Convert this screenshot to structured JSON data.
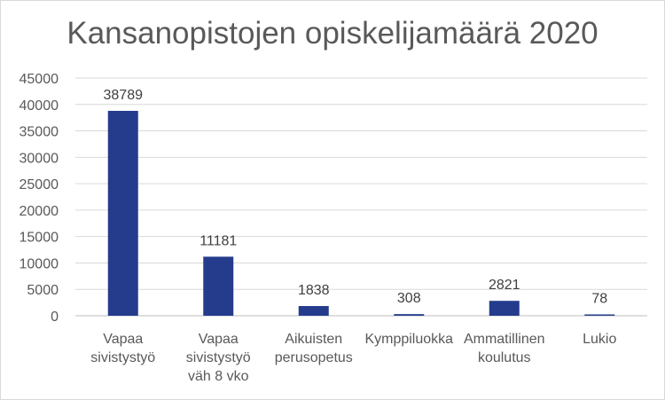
{
  "chart_data": {
    "type": "bar",
    "title": "Kansanopistojen opiskelijamäärä 2020",
    "xlabel": "",
    "ylabel": "",
    "categories": [
      [
        "Vapaa",
        "sivistystyö"
      ],
      [
        "Vapaa",
        "sivistystyö",
        "väh 8 vko"
      ],
      [
        "Aikuisten",
        "perusopetus"
      ],
      [
        "Kymppiluokka"
      ],
      [
        "Ammatillinen",
        "koulutus"
      ],
      [
        "Lukio"
      ]
    ],
    "values": [
      38789,
      11181,
      1838,
      308,
      2821,
      78
    ],
    "ylim": [
      0,
      45000
    ],
    "yticks": [
      0,
      5000,
      10000,
      15000,
      20000,
      25000,
      30000,
      35000,
      40000,
      45000
    ],
    "grid": true,
    "legend": "none",
    "bar_color": "#253C8C"
  }
}
